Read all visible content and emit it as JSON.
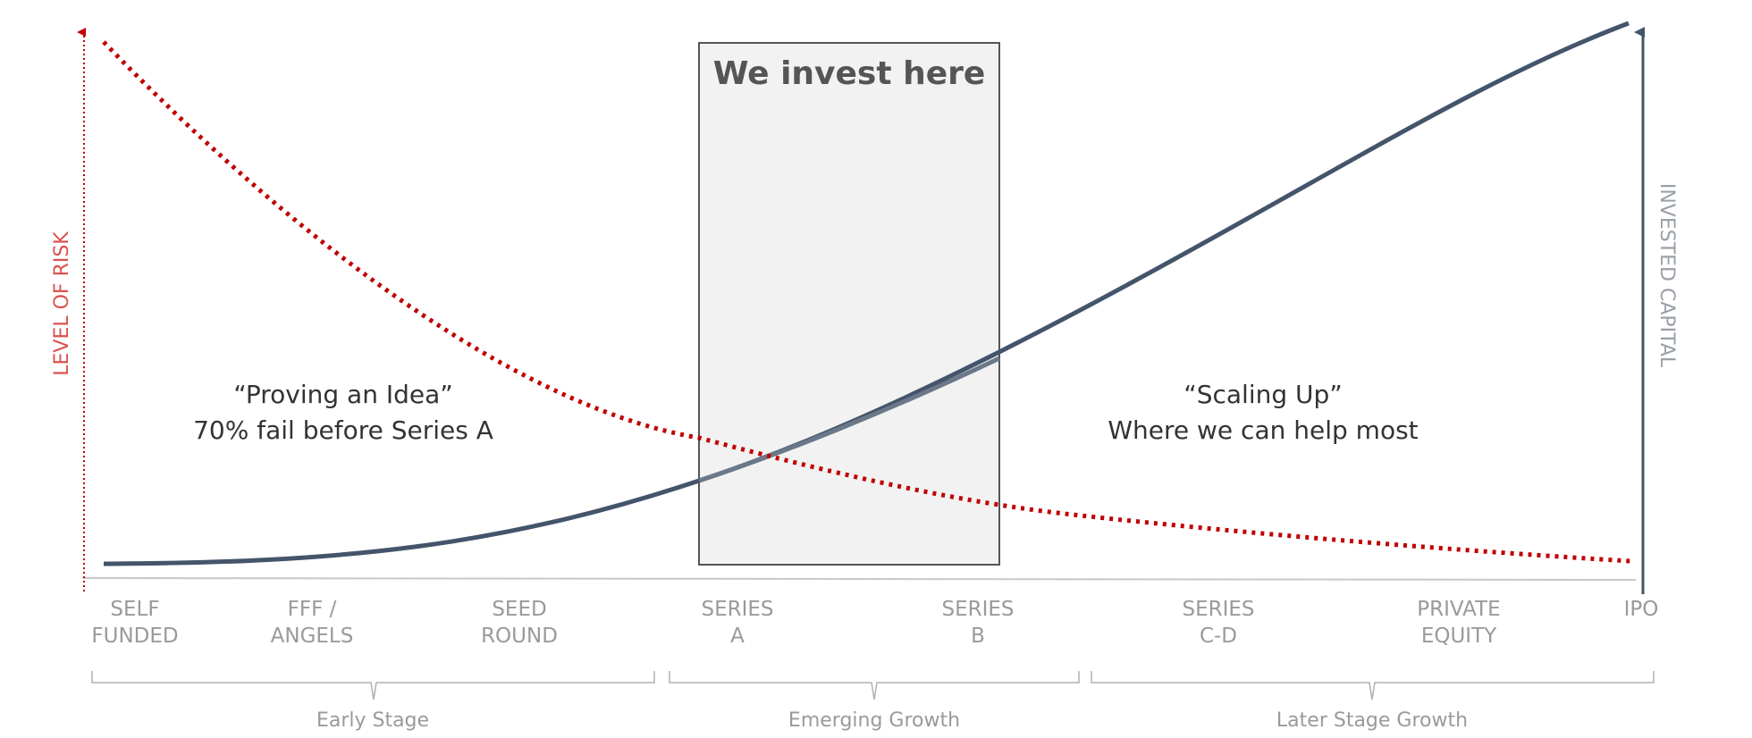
{
  "diagram": {
    "box_title": "We invest here",
    "risk_axis_label": "LEVEL OF RISK",
    "capital_axis_label": "INVESTED CAPITAL",
    "left_callout": {
      "line1": "“Proving an Idea”",
      "line2": "70% fail before Series A"
    },
    "right_callout": {
      "line1": "“Scaling Up”",
      "line2": "Where we can help most"
    },
    "stages": [
      {
        "line1": "SELF",
        "line2": "FUNDED"
      },
      {
        "line1": "FFF /",
        "line2": "ANGELS"
      },
      {
        "line1": "SEED",
        "line2": "ROUND"
      },
      {
        "line1": "SERIES",
        "line2": "A"
      },
      {
        "line1": "SERIES",
        "line2": "B"
      },
      {
        "line1": "SERIES",
        "line2": "C-D"
      },
      {
        "line1": "PRIVATE",
        "line2": "EQUITY"
      },
      {
        "line1": "IPO",
        "line2": ""
      }
    ],
    "phases": [
      "Early Stage",
      "Emerging Growth",
      "Later Stage Growth"
    ],
    "colors": {
      "risk": "#c00000",
      "capital": "#44546a",
      "capital_highlight": "#6b7889",
      "box_fill": "#f2f2f2",
      "box_stroke": "#555555",
      "axis": "#c8c8c8",
      "label_gray": "#9a9a9a"
    }
  }
}
